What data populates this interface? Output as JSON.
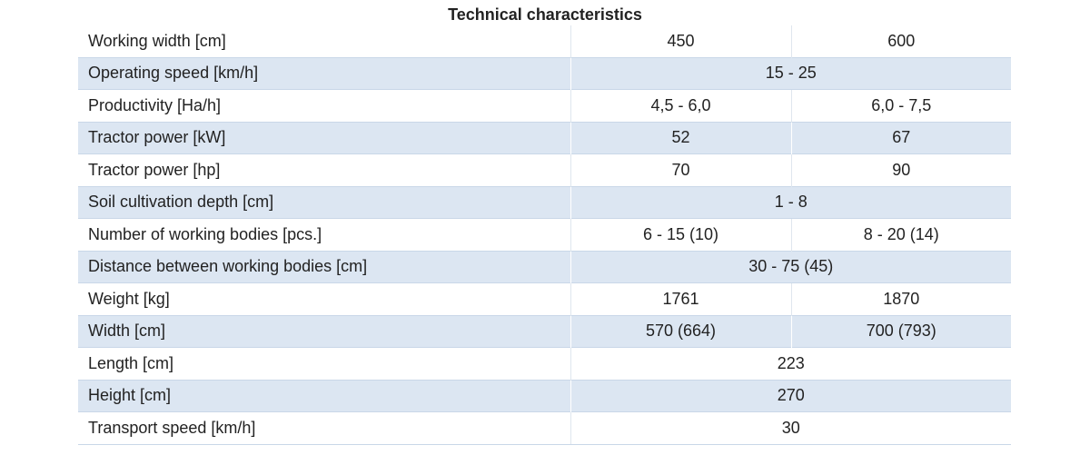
{
  "title": "Technical characteristics",
  "header": {
    "label": "Working width [cm]",
    "values": [
      "450",
      "600"
    ]
  },
  "rows": [
    {
      "label": "Operating speed [km/h]",
      "values": [
        "15 - 25"
      ]
    },
    {
      "label": "Productivity [Ha/h]",
      "values": [
        "4,5 - 6,0",
        "6,0 - 7,5"
      ]
    },
    {
      "label": "Tractor power [kW]",
      "values": [
        "52",
        "67"
      ]
    },
    {
      "label": "Tractor power [hp]",
      "values": [
        "70",
        "90"
      ]
    },
    {
      "label": "Soil cultivation depth [cm]",
      "values": [
        "1 - 8"
      ]
    },
    {
      "label": "Number of working bodies [pcs.]",
      "values": [
        "6 - 15 (10)",
        "8 - 20 (14)"
      ]
    },
    {
      "label": "Distance between working bodies [cm]",
      "values": [
        "30 - 75 (45)"
      ]
    },
    {
      "label": "Weight [kg]",
      "values": [
        "1761",
        "1870"
      ]
    },
    {
      "label": "Width [cm]",
      "values": [
        "570 (664)",
        "700 (793)"
      ]
    },
    {
      "label": "Length [cm]",
      "values": [
        "223"
      ]
    },
    {
      "label": "Height [cm]",
      "values": [
        "270"
      ]
    },
    {
      "label": "Transport speed [km/h]",
      "values": [
        "30"
      ]
    }
  ]
}
